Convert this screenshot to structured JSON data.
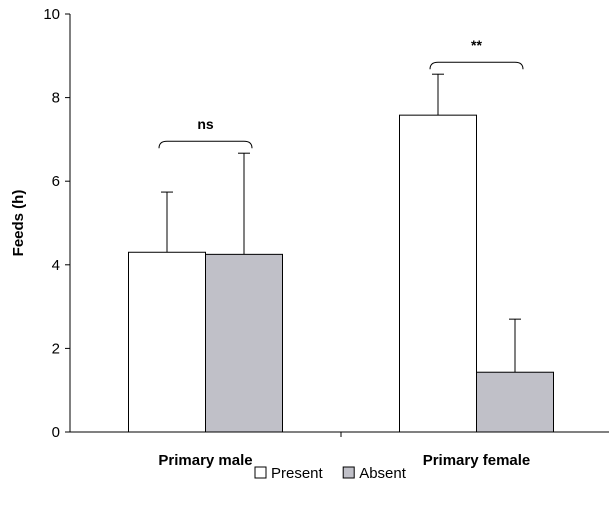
{
  "chart_data": {
    "type": "bar",
    "title": "",
    "xlabel": "",
    "ylabel": "Feeds (h)",
    "ylim": [
      0,
      10
    ],
    "yticks": [
      0,
      2,
      4,
      6,
      8,
      10
    ],
    "categories": [
      "Primary male",
      "Primary female"
    ],
    "series": [
      {
        "name": "Present",
        "values": [
          4.3,
          7.58
        ],
        "error_upper": [
          5.74,
          8.56
        ],
        "color": "#ffffff"
      },
      {
        "name": "Absent",
        "values": [
          4.25,
          1.43
        ],
        "error_upper": [
          6.67,
          2.7
        ],
        "color": "#c0c0c8"
      }
    ],
    "annotations": [
      {
        "category": "Primary male",
        "label": "ns"
      },
      {
        "category": "Primary female",
        "label": "**"
      }
    ],
    "legend": {
      "placement": "bottom-center"
    }
  }
}
